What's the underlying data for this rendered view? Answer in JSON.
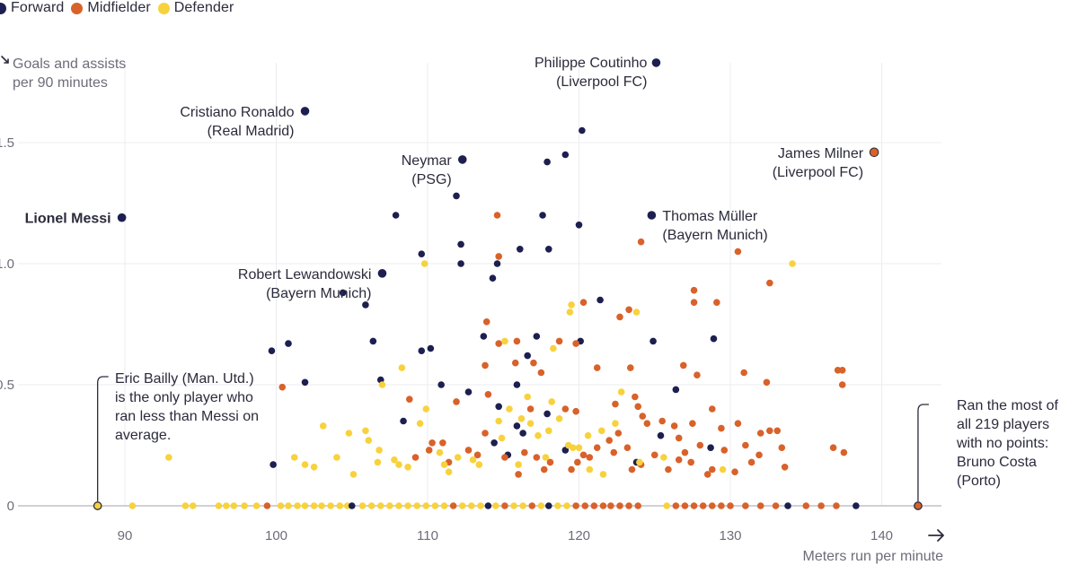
{
  "legend": [
    {
      "label": "Forward",
      "color": "#1c1f4f"
    },
    {
      "label": "Midfielder",
      "color": "#d8622a"
    },
    {
      "label": "Defender",
      "color": "#f8d23c"
    }
  ],
  "chart_data": {
    "type": "scatter",
    "title": "",
    "xlabel": "Meters run per minute",
    "ylabel": "Goals and assists\nper 90 minutes",
    "xlim": [
      84,
      143
    ],
    "ylim": [
      0,
      1.75
    ],
    "xticks": [
      90,
      100,
      110,
      120,
      130,
      140
    ],
    "yticks": [
      0,
      0.5,
      1.0,
      1.5
    ],
    "ytick_labels": [
      "0",
      "0.5",
      "1.0",
      "1.5"
    ],
    "grid": true,
    "legend_position": "top-left",
    "series": [
      {
        "name": "Forward",
        "color": "#1c1f4f",
        "points": [
          [
            89.8,
            1.19
          ],
          [
            101.9,
            1.63
          ],
          [
            112.3,
            1.43
          ],
          [
            125.1,
            1.83
          ],
          [
            124.8,
            1.2
          ],
          [
            107.0,
            0.96
          ],
          [
            120.2,
            1.55
          ],
          [
            119.1,
            1.45
          ],
          [
            117.9,
            1.42
          ],
          [
            111.9,
            1.28
          ],
          [
            107.9,
            1.2
          ],
          [
            117.6,
            1.2
          ],
          [
            120.0,
            1.16
          ],
          [
            112.2,
            1.08
          ],
          [
            109.6,
            1.04
          ],
          [
            116.1,
            1.06
          ],
          [
            118.0,
            1.06
          ],
          [
            112.2,
            1.0
          ],
          [
            114.6,
            1.0
          ],
          [
            114.3,
            0.94
          ],
          [
            104.4,
            0.88
          ],
          [
            105.9,
            0.83
          ],
          [
            121.4,
            0.85
          ],
          [
            99.7,
            0.64
          ],
          [
            100.8,
            0.67
          ],
          [
            106.4,
            0.68
          ],
          [
            109.6,
            0.64
          ],
          [
            110.2,
            0.65
          ],
          [
            113.7,
            0.7
          ],
          [
            117.2,
            0.7
          ],
          [
            120.1,
            0.68
          ],
          [
            124.9,
            0.68
          ],
          [
            128.9,
            0.69
          ],
          [
            101.9,
            0.51
          ],
          [
            106.9,
            0.52
          ],
          [
            110.9,
            0.5
          ],
          [
            112.7,
            0.47
          ],
          [
            115.9,
            0.5
          ],
          [
            116.6,
            0.62
          ],
          [
            126.4,
            0.48
          ],
          [
            114.7,
            0.41
          ],
          [
            115.9,
            0.33
          ],
          [
            116.3,
            0.3
          ],
          [
            117.9,
            0.38
          ],
          [
            108.4,
            0.35
          ],
          [
            114.4,
            0.26
          ],
          [
            119.1,
            0.23
          ],
          [
            125.4,
            0.29
          ],
          [
            128.7,
            0.24
          ],
          [
            99.8,
            0.17
          ],
          [
            123.8,
            0.18
          ],
          [
            115.3,
            0.21
          ]
        ]
      },
      {
        "name": "Midfielder",
        "color": "#d8622a",
        "points": [
          [
            139.5,
            1.46
          ],
          [
            114.6,
            1.2
          ],
          [
            124.1,
            1.09
          ],
          [
            114.7,
            1.03
          ],
          [
            130.5,
            1.05
          ],
          [
            132.6,
            0.92
          ],
          [
            120.3,
            0.84
          ],
          [
            122.7,
            0.78
          ],
          [
            123.3,
            0.81
          ],
          [
            127.6,
            0.89
          ],
          [
            127.6,
            0.84
          ],
          [
            129.1,
            0.84
          ],
          [
            113.9,
            0.76
          ],
          [
            114.7,
            0.67
          ],
          [
            115.9,
            0.68
          ],
          [
            118.7,
            0.68
          ],
          [
            119.8,
            0.67
          ],
          [
            115.8,
            0.59
          ],
          [
            117.0,
            0.59
          ],
          [
            113.8,
            0.58
          ],
          [
            117.5,
            0.55
          ],
          [
            121.2,
            0.57
          ],
          [
            123.4,
            0.57
          ],
          [
            126.9,
            0.58
          ],
          [
            130.9,
            0.55
          ],
          [
            127.8,
            0.54
          ],
          [
            132.4,
            0.51
          ],
          [
            137.1,
            0.56
          ],
          [
            137.4,
            0.56
          ],
          [
            137.4,
            0.5
          ],
          [
            100.4,
            0.49
          ],
          [
            108.8,
            0.44
          ],
          [
            111.9,
            0.43
          ],
          [
            114.0,
            0.46
          ],
          [
            116.8,
            0.4
          ],
          [
            119.1,
            0.4
          ],
          [
            119.8,
            0.39
          ],
          [
            122.4,
            0.42
          ],
          [
            123.7,
            0.45
          ],
          [
            123.9,
            0.41
          ],
          [
            124.2,
            0.37
          ],
          [
            124.5,
            0.34
          ],
          [
            125.5,
            0.35
          ],
          [
            126.3,
            0.33
          ],
          [
            127.5,
            0.34
          ],
          [
            128.8,
            0.4
          ],
          [
            129.4,
            0.32
          ],
          [
            130.5,
            0.34
          ],
          [
            132.0,
            0.3
          ],
          [
            132.6,
            0.31
          ],
          [
            133.1,
            0.31
          ],
          [
            133.4,
            0.24
          ],
          [
            136.8,
            0.24
          ],
          [
            137.5,
            0.22
          ],
          [
            110.1,
            0.23
          ],
          [
            111.0,
            0.26
          ],
          [
            112.7,
            0.23
          ],
          [
            113.3,
            0.21
          ],
          [
            115.1,
            0.2
          ],
          [
            116.4,
            0.22
          ],
          [
            117.2,
            0.2
          ],
          [
            118.1,
            0.18
          ],
          [
            119.5,
            0.15
          ],
          [
            119.9,
            0.18
          ],
          [
            120.3,
            0.21
          ],
          [
            120.7,
            0.2
          ],
          [
            121.2,
            0.24
          ],
          [
            122.0,
            0.27
          ],
          [
            122.6,
            0.3
          ],
          [
            123.2,
            0.24
          ],
          [
            123.5,
            0.15
          ],
          [
            124.1,
            0.17
          ],
          [
            125.0,
            0.21
          ],
          [
            125.9,
            0.15
          ],
          [
            126.6,
            0.19
          ],
          [
            127.0,
            0.22
          ],
          [
            127.4,
            0.18
          ],
          [
            128.0,
            0.25
          ],
          [
            128.5,
            0.13
          ],
          [
            129.6,
            0.23
          ],
          [
            130.3,
            0.14
          ],
          [
            131.0,
            0.25
          ],
          [
            131.9,
            0.21
          ],
          [
            133.6,
            0.16
          ],
          [
            109.2,
            0.2
          ],
          [
            110.3,
            0.26
          ],
          [
            111.4,
            0.18
          ],
          [
            113.8,
            0.3
          ],
          [
            116.0,
            0.13
          ],
          [
            117.7,
            0.15
          ],
          [
            122.3,
            0.22
          ],
          [
            126.6,
            0.28
          ],
          [
            128.8,
            0.15
          ],
          [
            131.4,
            0.18
          ]
        ]
      },
      {
        "name": "Defender",
        "color": "#f8d23c",
        "points": [
          [
            134.1,
            1.0
          ],
          [
            109.8,
            1.0
          ],
          [
            119.5,
            0.83
          ],
          [
            119.4,
            0.8
          ],
          [
            123.8,
            0.8
          ],
          [
            115.1,
            0.68
          ],
          [
            118.3,
            0.65
          ],
          [
            108.3,
            0.57
          ],
          [
            107.0,
            0.5
          ],
          [
            109.9,
            0.4
          ],
          [
            103.1,
            0.33
          ],
          [
            105.9,
            0.31
          ],
          [
            106.1,
            0.27
          ],
          [
            106.8,
            0.23
          ],
          [
            107.8,
            0.19
          ],
          [
            108.1,
            0.17
          ],
          [
            108.7,
            0.16
          ],
          [
            109.5,
            0.34
          ],
          [
            110.8,
            0.22
          ],
          [
            111.1,
            0.17
          ],
          [
            112.0,
            0.2
          ],
          [
            113.0,
            0.19
          ],
          [
            114.7,
            0.35
          ],
          [
            115.4,
            0.4
          ],
          [
            116.2,
            0.36
          ],
          [
            116.8,
            0.34
          ],
          [
            117.3,
            0.29
          ],
          [
            118.0,
            0.31
          ],
          [
            118.7,
            0.36
          ],
          [
            119.3,
            0.25
          ],
          [
            120.0,
            0.24
          ],
          [
            120.6,
            0.29
          ],
          [
            121.5,
            0.31
          ],
          [
            122.4,
            0.34
          ],
          [
            92.9,
            0.2
          ],
          [
            101.2,
            0.2
          ],
          [
            101.9,
            0.17
          ],
          [
            102.5,
            0.16
          ],
          [
            104.0,
            0.2
          ],
          [
            105.1,
            0.13
          ],
          [
            106.7,
            0.18
          ],
          [
            111.4,
            0.14
          ],
          [
            113.4,
            0.17
          ],
          [
            116.0,
            0.17
          ],
          [
            117.8,
            0.2
          ],
          [
            119.6,
            0.24
          ],
          [
            124.0,
            0.18
          ],
          [
            125.6,
            0.2
          ],
          [
            129.5,
            0.15
          ],
          [
            114.9,
            0.28
          ],
          [
            116.6,
            0.45
          ],
          [
            118.2,
            0.43
          ],
          [
            122.8,
            0.47
          ],
          [
            104.8,
            0.3
          ],
          [
            120.7,
            0.15
          ],
          [
            121.6,
            0.13
          ]
        ]
      }
    ],
    "zero_points": [
      {
        "x": 88.2,
        "role": "Defender",
        "highlight": true
      },
      {
        "x": 142.4,
        "role": "Midfielder",
        "highlight": true
      },
      {
        "x": 90.5,
        "role": "Defender"
      },
      {
        "x": 94.0,
        "role": "Defender"
      },
      {
        "x": 94.5,
        "role": "Defender"
      },
      {
        "x": 96.2,
        "role": "Defender"
      },
      {
        "x": 96.7,
        "role": "Defender"
      },
      {
        "x": 97.2,
        "role": "Defender"
      },
      {
        "x": 97.9,
        "role": "Defender"
      },
      {
        "x": 98.7,
        "role": "Defender"
      },
      {
        "x": 99.4,
        "role": "Midfielder"
      },
      {
        "x": 100.3,
        "role": "Defender"
      },
      {
        "x": 100.8,
        "role": "Defender"
      },
      {
        "x": 101.4,
        "role": "Defender"
      },
      {
        "x": 101.9,
        "role": "Defender"
      },
      {
        "x": 102.5,
        "role": "Defender"
      },
      {
        "x": 103.0,
        "role": "Defender"
      },
      {
        "x": 103.6,
        "role": "Defender"
      },
      {
        "x": 104.2,
        "role": "Defender"
      },
      {
        "x": 104.7,
        "role": "Defender"
      },
      {
        "x": 105.0,
        "role": "Forward"
      },
      {
        "x": 105.7,
        "role": "Defender"
      },
      {
        "x": 106.3,
        "role": "Defender"
      },
      {
        "x": 106.9,
        "role": "Defender"
      },
      {
        "x": 107.5,
        "role": "Defender"
      },
      {
        "x": 108.1,
        "role": "Defender"
      },
      {
        "x": 108.7,
        "role": "Defender"
      },
      {
        "x": 109.3,
        "role": "Defender"
      },
      {
        "x": 109.9,
        "role": "Defender"
      },
      {
        "x": 110.5,
        "role": "Defender"
      },
      {
        "x": 111.1,
        "role": "Defender"
      },
      {
        "x": 111.7,
        "role": "Midfielder"
      },
      {
        "x": 112.3,
        "role": "Defender"
      },
      {
        "x": 112.9,
        "role": "Defender"
      },
      {
        "x": 113.5,
        "role": "Defender"
      },
      {
        "x": 114.0,
        "role": "Forward"
      },
      {
        "x": 114.5,
        "role": "Defender"
      },
      {
        "x": 115.1,
        "role": "Midfielder"
      },
      {
        "x": 115.7,
        "role": "Defender"
      },
      {
        "x": 116.3,
        "role": "Defender"
      },
      {
        "x": 116.9,
        "role": "Midfielder"
      },
      {
        "x": 117.5,
        "role": "Defender"
      },
      {
        "x": 118.0,
        "role": "Forward"
      },
      {
        "x": 118.6,
        "role": "Defender"
      },
      {
        "x": 119.2,
        "role": "Defender"
      },
      {
        "x": 119.8,
        "role": "Midfielder"
      },
      {
        "x": 120.4,
        "role": "Midfielder"
      },
      {
        "x": 121.0,
        "role": "Midfielder"
      },
      {
        "x": 121.6,
        "role": "Midfielder"
      },
      {
        "x": 122.1,
        "role": "Midfielder"
      },
      {
        "x": 122.7,
        "role": "Midfielder"
      },
      {
        "x": 123.3,
        "role": "Midfielder"
      },
      {
        "x": 123.9,
        "role": "Midfielder"
      },
      {
        "x": 125.8,
        "role": "Defender"
      },
      {
        "x": 126.4,
        "role": "Midfielder"
      },
      {
        "x": 127.0,
        "role": "Midfielder"
      },
      {
        "x": 127.6,
        "role": "Midfielder"
      },
      {
        "x": 128.2,
        "role": "Midfielder"
      },
      {
        "x": 128.8,
        "role": "Midfielder"
      },
      {
        "x": 129.4,
        "role": "Midfielder"
      },
      {
        "x": 130.0,
        "role": "Midfielder"
      },
      {
        "x": 131.0,
        "role": "Midfielder"
      },
      {
        "x": 132.0,
        "role": "Midfielder"
      },
      {
        "x": 133.0,
        "role": "Midfielder"
      },
      {
        "x": 133.8,
        "role": "Forward"
      },
      {
        "x": 135.0,
        "role": "Midfielder"
      },
      {
        "x": 136.0,
        "role": "Midfielder"
      },
      {
        "x": 137.0,
        "role": "Midfielder"
      },
      {
        "x": 138.3,
        "role": "Forward"
      }
    ],
    "labeled_players": [
      {
        "x": 125.1,
        "y": 1.83,
        "role": "Forward",
        "name": "Philippe Coutinho",
        "club": "(Liverpool FC)",
        "anchor": "above-left"
      },
      {
        "x": 101.9,
        "y": 1.63,
        "role": "Forward",
        "name": "Cristiano Ronaldo",
        "club": "(Real Madrid)",
        "anchor": "left"
      },
      {
        "x": 112.3,
        "y": 1.43,
        "role": "Forward",
        "name": "Neymar",
        "club": "(PSG)",
        "anchor": "left"
      },
      {
        "x": 139.5,
        "y": 1.46,
        "role": "Midfielder",
        "name": "James Milner",
        "club": "(Liverpool FC)",
        "anchor": "left"
      },
      {
        "x": 89.8,
        "y": 1.19,
        "role": "Forward",
        "name": "Lionel Messi",
        "club": "",
        "anchor": "left",
        "bold": true
      },
      {
        "x": 124.8,
        "y": 1.2,
        "role": "Forward",
        "name": "Thomas Müller",
        "club": "(Bayern Munich)",
        "anchor": "right"
      },
      {
        "x": 107.0,
        "y": 0.96,
        "role": "Forward",
        "name": "Robert Lewandowski",
        "club": "(Bayern Munich)",
        "anchor": "left"
      }
    ],
    "annotations": [
      {
        "id": "bailly",
        "x": 88.2,
        "lines": [
          "Eric Bailly (Man. Utd.)",
          "is the only player who",
          "ran less than Messi on",
          "average."
        ]
      },
      {
        "id": "costa",
        "x": 142.4,
        "lines": [
          "Ran the most of",
          "all 219 players",
          "with no points:",
          "Bruno Costa",
          "(Porto)"
        ]
      }
    ]
  }
}
